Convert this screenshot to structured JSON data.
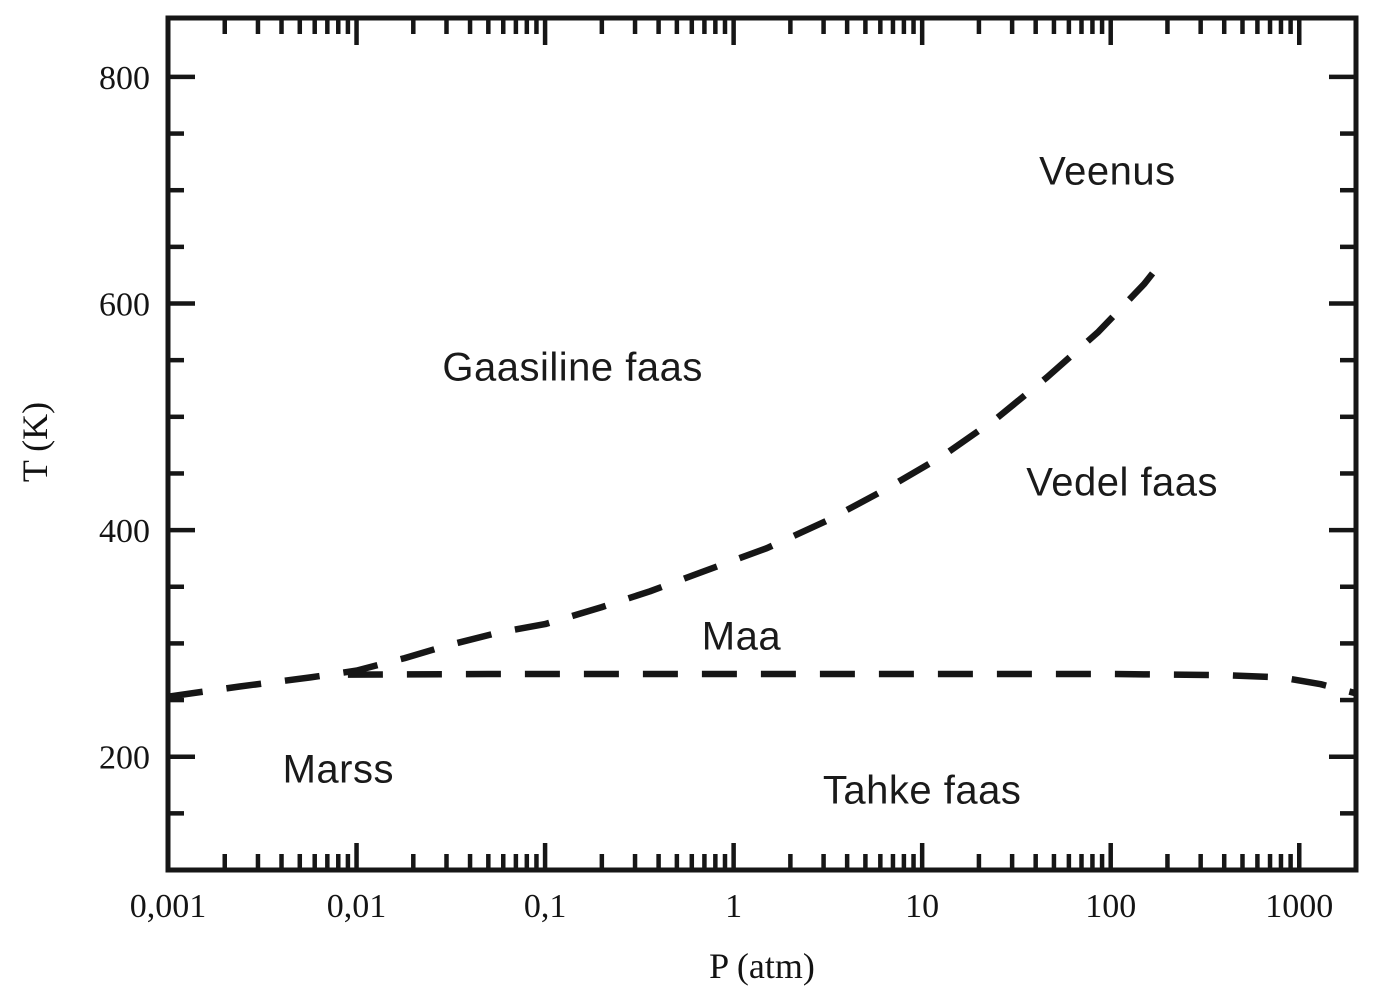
{
  "figure": {
    "background": "#ffffff",
    "ink_color": "#161616"
  },
  "chart_data": {
    "type": "line",
    "subtype": "phase-diagram",
    "title": "",
    "xlabel": "P (atm)",
    "ylabel": "T (K)",
    "x_scale": "log",
    "xlim": [
      0.001,
      2000
    ],
    "ylim": [
      100,
      852
    ],
    "grid": false,
    "legend": false,
    "x_ticks": [
      {
        "value": 0.001,
        "label": "0,001"
      },
      {
        "value": 0.01,
        "label": "0,01"
      },
      {
        "value": 0.1,
        "label": "0,1"
      },
      {
        "value": 1,
        "label": "1"
      },
      {
        "value": 10,
        "label": "10"
      },
      {
        "value": 100,
        "label": "100"
      },
      {
        "value": 1000,
        "label": "1000"
      }
    ],
    "x_minor_multiples": [
      2,
      3,
      4,
      5,
      6,
      7,
      8,
      9
    ],
    "y_ticks": [
      {
        "value": 800,
        "label": "800"
      },
      {
        "value": 600,
        "label": "600"
      },
      {
        "value": 400,
        "label": "400"
      },
      {
        "value": 200,
        "label": "200"
      }
    ],
    "y_minor_step": 50,
    "series": [
      {
        "name": "sublimation-vaporization boundary",
        "line_style": "dashed",
        "color": "#161616",
        "points": [
          [
            0.001,
            253
          ],
          [
            0.0024,
            262
          ],
          [
            0.0057,
            270
          ],
          [
            0.01,
            276
          ],
          [
            0.018,
            287
          ],
          [
            0.03,
            298
          ],
          [
            0.058,
            310
          ],
          [
            0.1,
            317
          ],
          [
            0.2,
            332
          ],
          [
            0.36,
            346
          ],
          [
            0.68,
            363
          ],
          [
            1.5,
            384
          ],
          [
            3.1,
            408
          ],
          [
            6.4,
            436
          ],
          [
            13,
            466
          ],
          [
            25,
            499
          ],
          [
            46,
            535
          ],
          [
            86,
            575
          ],
          [
            150,
            617
          ],
          [
            175,
            631
          ]
        ]
      },
      {
        "name": "melting boundary",
        "line_style": "dashed",
        "color": "#161616",
        "points": [
          [
            0.009,
            272.5
          ],
          [
            0.05,
            273
          ],
          [
            0.3,
            273
          ],
          [
            1,
            273
          ],
          [
            10,
            273
          ],
          [
            100,
            273
          ],
          [
            400,
            272
          ],
          [
            800,
            270
          ],
          [
            1300,
            264
          ],
          [
            2000,
            256
          ]
        ]
      }
    ],
    "regions": {
      "gas": {
        "label": "Gaasiline faas",
        "P": 0.14,
        "T": 543
      },
      "liquid": {
        "label": "Vedel faas",
        "P": 115,
        "T": 442
      },
      "solid": {
        "label": "Tahke faas",
        "P": 10,
        "T": 170
      }
    },
    "planets": {
      "venus": {
        "label": "Veenus",
        "P": 96,
        "T": 716
      },
      "earth": {
        "label": "Maa",
        "P": 1.1,
        "T": 306
      },
      "mars": {
        "label": "Marss",
        "P": 0.008,
        "T": 188
      }
    }
  }
}
